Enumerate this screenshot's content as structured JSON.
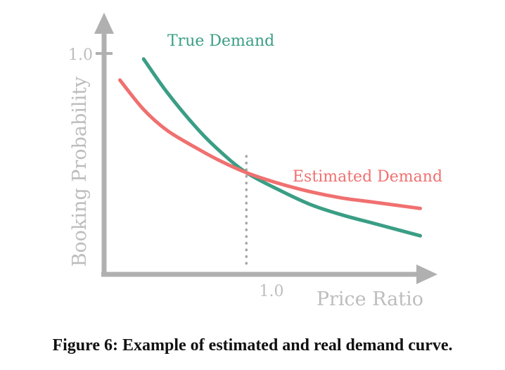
{
  "chart_data": {
    "type": "line",
    "xlabel": "Price Ratio",
    "ylabel": "Booking Probability",
    "x_ticks": [
      "1.0"
    ],
    "y_ticks": [
      "1.0"
    ],
    "xlim": [
      0.1,
      2.2
    ],
    "ylim": [
      0,
      1.2
    ],
    "grid": false,
    "reference_lines": [
      {
        "orientation": "vertical",
        "x": 1.0,
        "style": "dotted"
      }
    ],
    "series": [
      {
        "name": "True Demand",
        "color": "#3a9e85",
        "x": [
          0.35,
          0.5,
          0.7,
          0.85,
          1.0,
          1.2,
          1.4,
          1.6,
          1.8,
          2.0,
          2.1
        ],
        "y": [
          1.03,
          0.87,
          0.69,
          0.58,
          0.49,
          0.41,
          0.34,
          0.29,
          0.25,
          0.21,
          0.19
        ]
      },
      {
        "name": "Estimated Demand",
        "color": "#f07070",
        "x": [
          0.2,
          0.35,
          0.5,
          0.7,
          0.85,
          1.0,
          1.2,
          1.4,
          1.6,
          1.8,
          2.0,
          2.1
        ],
        "y": [
          0.93,
          0.79,
          0.69,
          0.6,
          0.54,
          0.49,
          0.44,
          0.4,
          0.37,
          0.35,
          0.33,
          0.32
        ]
      }
    ]
  },
  "caption": "Figure 6: Example of estimated and real demand curve."
}
